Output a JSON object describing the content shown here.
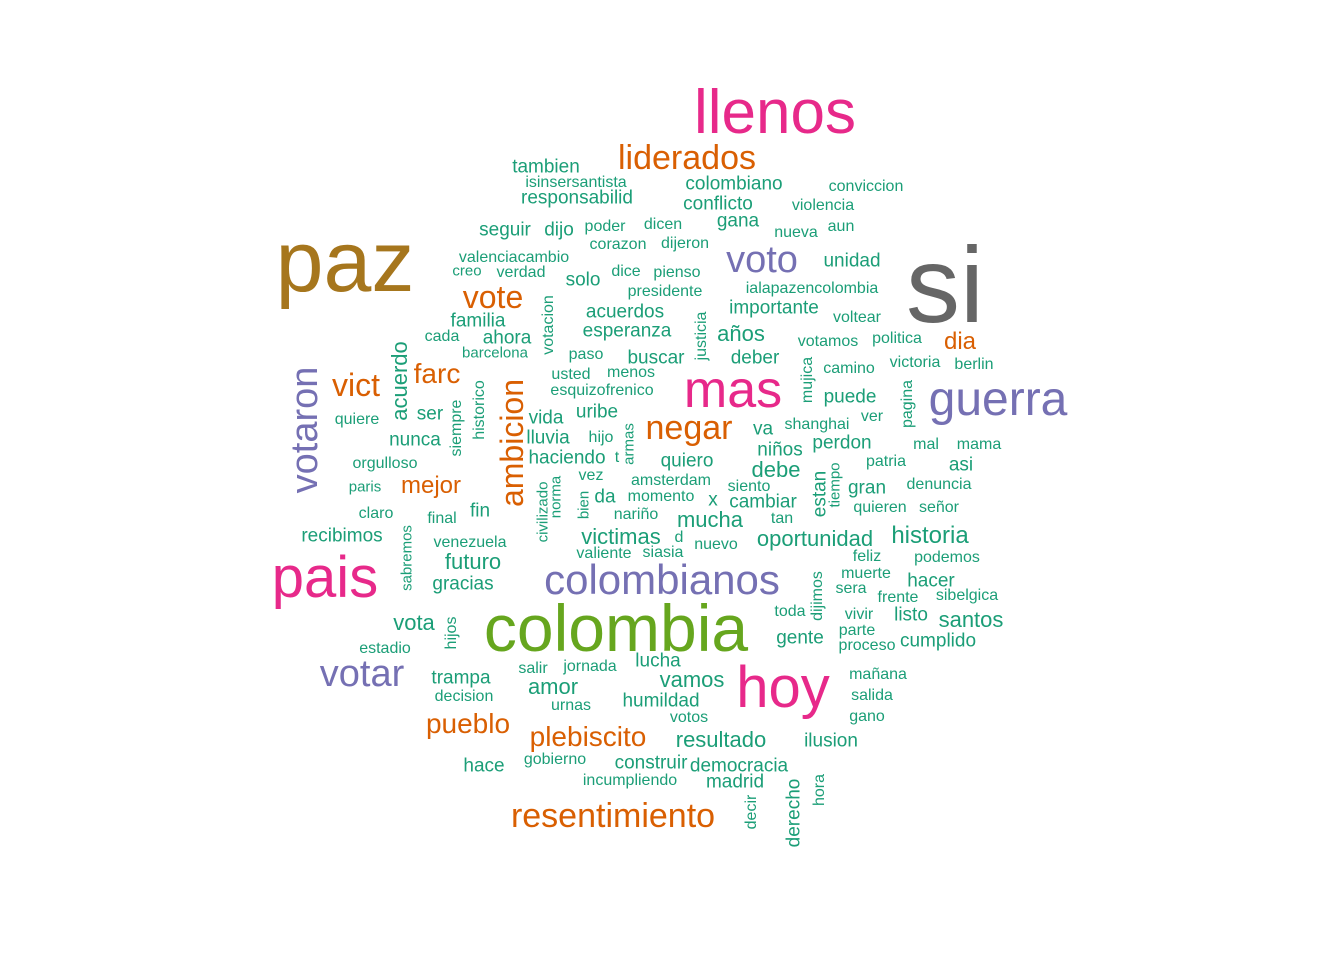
{
  "palette": {
    "g": "#1b9e77",
    "o": "#d95f02",
    "p": "#7570b3",
    "m": "#e7298a",
    "l": "#66a61e",
    "b": "#a6761d",
    "k": "#666666"
  },
  "words": [
    {
      "text": "si",
      "color": "k"
    },
    {
      "text": "paz",
      "color": "b"
    },
    {
      "text": "colombia",
      "color": "l"
    },
    {
      "text": "llenos",
      "color": "m"
    },
    {
      "text": "pais",
      "color": "m"
    },
    {
      "text": "hoy",
      "color": "m"
    },
    {
      "text": "mas",
      "color": "m"
    },
    {
      "text": "guerra",
      "color": "p"
    },
    {
      "text": "colombianos",
      "color": "p"
    },
    {
      "text": "votaron",
      "color": "p"
    },
    {
      "text": "votar",
      "color": "p"
    },
    {
      "text": "voto",
      "color": "p"
    },
    {
      "text": "liderados",
      "color": "o"
    },
    {
      "text": "resentimiento",
      "color": "o"
    },
    {
      "text": "ambicion",
      "color": "o"
    },
    {
      "text": "negar",
      "color": "o"
    },
    {
      "text": "vote",
      "color": "o"
    },
    {
      "text": "vict",
      "color": "o"
    },
    {
      "text": "farc",
      "color": "o"
    },
    {
      "text": "plebiscito",
      "color": "o"
    },
    {
      "text": "pueblo",
      "color": "o"
    },
    {
      "text": "mejor",
      "color": "o"
    },
    {
      "text": "dia",
      "color": "o"
    },
    {
      "text": "tambien",
      "color": "g"
    },
    {
      "text": "isinsersantista",
      "color": "g"
    },
    {
      "text": "responsabilid",
      "color": "g"
    },
    {
      "text": "colombiano",
      "color": "g"
    },
    {
      "text": "conflicto",
      "color": "g"
    },
    {
      "text": "conviccion",
      "color": "g"
    },
    {
      "text": "violencia",
      "color": "g"
    },
    {
      "text": "seguir",
      "color": "g"
    },
    {
      "text": "dijo",
      "color": "g"
    },
    {
      "text": "poder",
      "color": "g"
    },
    {
      "text": "dicen",
      "color": "g"
    },
    {
      "text": "gana",
      "color": "g"
    },
    {
      "text": "nueva",
      "color": "g"
    },
    {
      "text": "aun",
      "color": "g"
    },
    {
      "text": "corazon",
      "color": "g"
    },
    {
      "text": "dijeron",
      "color": "g"
    },
    {
      "text": "unidad",
      "color": "g"
    },
    {
      "text": "valenciacambio",
      "color": "g"
    },
    {
      "text": "creo",
      "color": "g"
    },
    {
      "text": "verdad",
      "color": "g"
    },
    {
      "text": "solo",
      "color": "g"
    },
    {
      "text": "dice",
      "color": "g"
    },
    {
      "text": "pienso",
      "color": "g"
    },
    {
      "text": "ialapazencolombia",
      "color": "g"
    },
    {
      "text": "presidente",
      "color": "g"
    },
    {
      "text": "importante",
      "color": "g"
    },
    {
      "text": "acuerdos",
      "color": "g"
    },
    {
      "text": "voltear",
      "color": "g"
    },
    {
      "text": "familia",
      "color": "g"
    },
    {
      "text": "votacion",
      "color": "g"
    },
    {
      "text": "esperanza",
      "color": "g"
    },
    {
      "text": "justicia",
      "color": "g"
    },
    {
      "text": "años",
      "color": "g"
    },
    {
      "text": "cada",
      "color": "g"
    },
    {
      "text": "ahora",
      "color": "g"
    },
    {
      "text": "votamos",
      "color": "g"
    },
    {
      "text": "politica",
      "color": "g"
    },
    {
      "text": "barcelona",
      "color": "g"
    },
    {
      "text": "paso",
      "color": "g"
    },
    {
      "text": "buscar",
      "color": "g"
    },
    {
      "text": "deber",
      "color": "g"
    },
    {
      "text": "camino",
      "color": "g"
    },
    {
      "text": "victoria",
      "color": "g"
    },
    {
      "text": "berlin",
      "color": "g"
    },
    {
      "text": "acuerdo",
      "color": "g"
    },
    {
      "text": "usted",
      "color": "g"
    },
    {
      "text": "menos",
      "color": "g"
    },
    {
      "text": "mujica",
      "color": "g"
    },
    {
      "text": "esquizofrenico",
      "color": "g"
    },
    {
      "text": "historico",
      "color": "g"
    },
    {
      "text": "siempre",
      "color": "g"
    },
    {
      "text": "puede",
      "color": "g"
    },
    {
      "text": "pagina",
      "color": "g"
    },
    {
      "text": "quiere",
      "color": "g"
    },
    {
      "text": "ser",
      "color": "g"
    },
    {
      "text": "vida",
      "color": "g"
    },
    {
      "text": "uribe",
      "color": "g"
    },
    {
      "text": "ver",
      "color": "g"
    },
    {
      "text": "shanghai",
      "color": "g"
    },
    {
      "text": "va",
      "color": "g"
    },
    {
      "text": "nunca",
      "color": "g"
    },
    {
      "text": "lluvia",
      "color": "g"
    },
    {
      "text": "hijo",
      "color": "g"
    },
    {
      "text": "armas",
      "color": "g"
    },
    {
      "text": "perdon",
      "color": "g"
    },
    {
      "text": "niños",
      "color": "g"
    },
    {
      "text": "mal",
      "color": "g"
    },
    {
      "text": "mama",
      "color": "g"
    },
    {
      "text": "orgulloso",
      "color": "g"
    },
    {
      "text": "haciendo",
      "color": "g"
    },
    {
      "text": "t",
      "color": "g"
    },
    {
      "text": "quiero",
      "color": "g"
    },
    {
      "text": "debe",
      "color": "g"
    },
    {
      "text": "patria",
      "color": "g"
    },
    {
      "text": "asi",
      "color": "g"
    },
    {
      "text": "vez",
      "color": "g"
    },
    {
      "text": "estan",
      "color": "g"
    },
    {
      "text": "tiempo",
      "color": "g"
    },
    {
      "text": "paris",
      "color": "g"
    },
    {
      "text": "amsterdam",
      "color": "g"
    },
    {
      "text": "siento",
      "color": "g"
    },
    {
      "text": "gran",
      "color": "g"
    },
    {
      "text": "denuncia",
      "color": "g"
    },
    {
      "text": "civilizado",
      "color": "g"
    },
    {
      "text": "norma",
      "color": "g"
    },
    {
      "text": "bien",
      "color": "g"
    },
    {
      "text": "da",
      "color": "g"
    },
    {
      "text": "momento",
      "color": "g"
    },
    {
      "text": "x",
      "color": "g"
    },
    {
      "text": "cambiar",
      "color": "g"
    },
    {
      "text": "claro",
      "color": "g"
    },
    {
      "text": "fin",
      "color": "g"
    },
    {
      "text": "final",
      "color": "g"
    },
    {
      "text": "nariño",
      "color": "g"
    },
    {
      "text": "tan",
      "color": "g"
    },
    {
      "text": "quieren",
      "color": "g"
    },
    {
      "text": "señor",
      "color": "g"
    },
    {
      "text": "mucha",
      "color": "g"
    },
    {
      "text": "recibimos",
      "color": "g"
    },
    {
      "text": "sabremos",
      "color": "g"
    },
    {
      "text": "venezuela",
      "color": "g"
    },
    {
      "text": "victimas",
      "color": "g"
    },
    {
      "text": "d",
      "color": "g"
    },
    {
      "text": "oportunidad",
      "color": "g"
    },
    {
      "text": "historia",
      "color": "g"
    },
    {
      "text": "valiente",
      "color": "g"
    },
    {
      "text": "siasia",
      "color": "g"
    },
    {
      "text": "nuevo",
      "color": "g"
    },
    {
      "text": "feliz",
      "color": "g"
    },
    {
      "text": "podemos",
      "color": "g"
    },
    {
      "text": "futuro",
      "color": "g"
    },
    {
      "text": "muerte",
      "color": "g"
    },
    {
      "text": "hacer",
      "color": "g"
    },
    {
      "text": "gracias",
      "color": "g"
    },
    {
      "text": "dijimos",
      "color": "g"
    },
    {
      "text": "sera",
      "color": "g"
    },
    {
      "text": "frente",
      "color": "g"
    },
    {
      "text": "sibelgica",
      "color": "g"
    },
    {
      "text": "toda",
      "color": "g"
    },
    {
      "text": "vivir",
      "color": "g"
    },
    {
      "text": "listo",
      "color": "g"
    },
    {
      "text": "santos",
      "color": "g"
    },
    {
      "text": "vota",
      "color": "g"
    },
    {
      "text": "hijos",
      "color": "g"
    },
    {
      "text": "gente",
      "color": "g"
    },
    {
      "text": "parte",
      "color": "g"
    },
    {
      "text": "cumplido",
      "color": "g"
    },
    {
      "text": "estadio",
      "color": "g"
    },
    {
      "text": "proceso",
      "color": "g"
    },
    {
      "text": "lucha",
      "color": "g"
    },
    {
      "text": "salir",
      "color": "g"
    },
    {
      "text": "jornada",
      "color": "g"
    },
    {
      "text": "trampa",
      "color": "g"
    },
    {
      "text": "mañana",
      "color": "g"
    },
    {
      "text": "vamos",
      "color": "g"
    },
    {
      "text": "amor",
      "color": "g"
    },
    {
      "text": "decision",
      "color": "g"
    },
    {
      "text": "salida",
      "color": "g"
    },
    {
      "text": "humildad",
      "color": "g"
    },
    {
      "text": "urnas",
      "color": "g"
    },
    {
      "text": "gano",
      "color": "g"
    },
    {
      "text": "votos",
      "color": "g"
    },
    {
      "text": "resultado",
      "color": "g"
    },
    {
      "text": "ilusion",
      "color": "g"
    },
    {
      "text": "gobierno",
      "color": "g"
    },
    {
      "text": "hace",
      "color": "g"
    },
    {
      "text": "construir",
      "color": "g"
    },
    {
      "text": "democracia",
      "color": "g"
    },
    {
      "text": "incumpliendo",
      "color": "g"
    },
    {
      "text": "madrid",
      "color": "g"
    },
    {
      "text": "derecho",
      "color": "g"
    },
    {
      "text": "hora",
      "color": "g"
    },
    {
      "text": "decir",
      "color": "g"
    }
  ]
}
